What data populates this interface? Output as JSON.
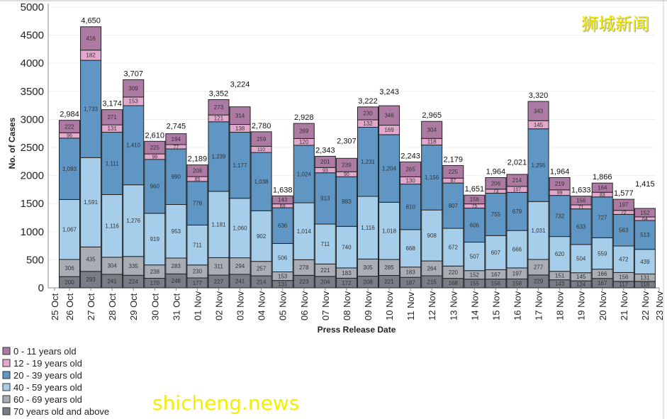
{
  "chart_data": {
    "type": "bar",
    "stacked": true,
    "xlabel": "Press Release Date",
    "ylabel": "No. of Cases",
    "ylim": [
      0,
      5000
    ],
    "yticks": [
      0,
      500,
      1000,
      1500,
      2000,
      2500,
      3000,
      3500,
      4000,
      4500,
      5000
    ],
    "grid": true,
    "legend_position": "bottom-left",
    "axis_tick_labels": [
      "25 Oct",
      "26 Oct",
      "27 Oct",
      "28 Oct",
      "29 Oct",
      "30 Oct",
      "31 Oct",
      "01 Nov",
      "02 Nov",
      "03 Nov",
      "04 Nov",
      "05 Nov",
      "06 Nov",
      "07 Nov",
      "08 Nov",
      "09 Nov",
      "10 Nov",
      "11 Nov",
      "12 Nov",
      "13 Nov",
      "14 Nov",
      "15 Nov",
      "16 Nov",
      "17 Nov",
      "18 Nov",
      "19 Nov",
      "20 Nov",
      "21 Nov",
      "22 Nov",
      "23 Nov"
    ],
    "categories": [
      "26 Oct",
      "27 Oct",
      "28 Oct",
      "29 Oct",
      "30 Oct",
      "31 Oct",
      "01 Nov",
      "02 Nov",
      "03 Nov",
      "04 Nov",
      "05 Nov",
      "06 Nov",
      "07 Nov",
      "08 Nov",
      "09 Nov",
      "10 Nov",
      "11 Nov",
      "12 Nov",
      "13 Nov",
      "14 Nov",
      "15 Nov",
      "16 Nov",
      "17 Nov",
      "18 Nov",
      "19 Nov",
      "20 Nov",
      "21 Nov",
      "22 Nov"
    ],
    "totals": [
      "2,984",
      "4,650",
      "3,174",
      "3,707",
      "2,610",
      "2,745",
      "2,189",
      "3,352",
      "3,224",
      "2,780",
      "1,638",
      "2,928",
      "2,343",
      "2,307",
      "3,222",
      "3,243",
      "2,243",
      "2,965",
      "2,179",
      "1,651",
      "1,964",
      "2,021",
      "3,320",
      "1,964",
      "1,633",
      "1,866",
      "1,577",
      "1,415"
    ],
    "series": [
      {
        "name": "70 years old and above",
        "color": "#787d86",
        "values": [
          200,
          293,
          241,
          224,
          170,
          248,
          177,
          227,
          241,
          214,
          131,
          223,
          204,
          172,
          208,
          221,
          187,
          215,
          168,
          155,
          156,
          158,
          229,
          143,
          124,
          167,
          117,
          116
        ]
      },
      {
        "name": "60 - 69 years old",
        "color": "#a9aeb6",
        "values": [
          306,
          435,
          304,
          335,
          238,
          283,
          230,
          311,
          294,
          257,
          153,
          278,
          221,
          183,
          305,
          285,
          183,
          264,
          220,
          152,
          167,
          197,
          277,
          151,
          145,
          166,
          156,
          131
        ]
      },
      {
        "name": "40 - 59 years old",
        "color": "#a6cde9",
        "values": [
          1067,
          1591,
          1116,
          1276,
          919,
          953,
          711,
          1181,
          1060,
          902,
          506,
          1014,
          711,
          740,
          1116,
          1018,
          668,
          908,
          672,
          507,
          607,
          666,
          1031,
          620,
          504,
          559,
          472,
          439
        ]
      },
      {
        "name": "20 - 39 years old",
        "color": "#5f96c4",
        "values": [
          1093,
          1733,
          1111,
          1410,
          960,
          990,
          778,
          1239,
          1177,
          1038,
          636,
          1024,
          913,
          883,
          1231,
          1204,
          810,
          1156,
          807,
          606,
          755,
          679,
          1295,
          732,
          633,
          727,
          563,
          513
        ]
      },
      {
        "name": "12 - 19 years old",
        "color": "#e2a9cd",
        "values": [
          96,
          182,
          131,
          153,
          98,
          77,
          85,
          121,
          138,
          110,
          69,
          120,
          93,
          90,
          132,
          169,
          130,
          118,
          87,
          75,
          73,
          107,
          145,
          99,
          71,
          83,
          72,
          64
        ]
      },
      {
        "name": "0 - 11 years old",
        "color": "#ad7aa3",
        "values": [
          222,
          416,
          271,
          309,
          225,
          194,
          208,
          273,
          314,
          259,
          143,
          269,
          201,
          239,
          230,
          346,
          265,
          304,
          225,
          156,
          206,
          214,
          343,
          219,
          156,
          164,
          197,
          152
        ]
      }
    ]
  },
  "watermarks": {
    "chinese": "狮城新闻",
    "english": "shicheng.news"
  }
}
